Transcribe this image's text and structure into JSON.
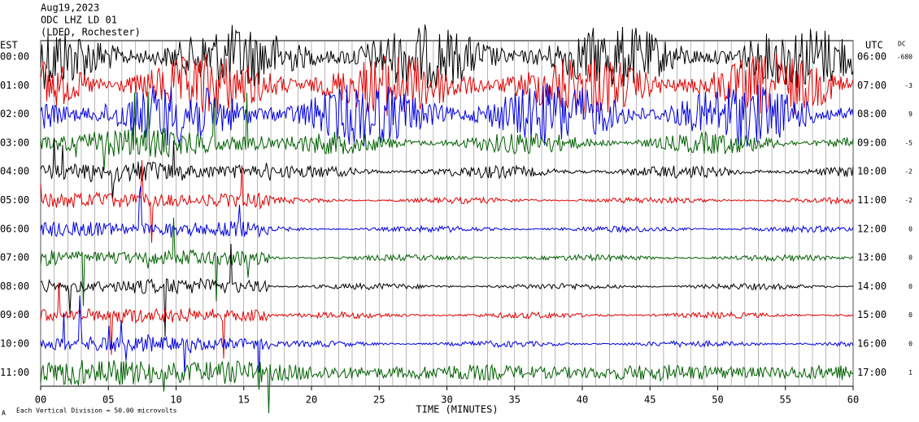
{
  "chart_data": {
    "type": "helicorder",
    "header": [
      "Aug19,2023",
      "ODC LHZ LD 01",
      "(LDEO, Rochester)"
    ],
    "left_zone": "EST",
    "right_zone": "UTC",
    "dc_label": "DC",
    "rows_left": [
      "00:00",
      "01:00",
      "02:00",
      "03:00",
      "04:00",
      "05:00",
      "06:00",
      "07:00",
      "08:00",
      "09:00",
      "10:00",
      "11:00"
    ],
    "rows_right": [
      "06:00",
      "07:00",
      "08:00",
      "09:00",
      "10:00",
      "11:00",
      "12:00",
      "13:00",
      "14:00",
      "15:00",
      "16:00",
      "17:00"
    ],
    "dc_values": [
      -680,
      -3,
      9,
      -5,
      -2,
      -2,
      0,
      0,
      0,
      0,
      0,
      1
    ],
    "xlabel": "TIME (MINUTES)",
    "xlim": [
      0,
      60
    ],
    "xticks": [
      {
        "value": 0,
        "label": "00"
      },
      {
        "value": 5,
        "label": "05"
      },
      10,
      15,
      20,
      25,
      30,
      35,
      40,
      45,
      50,
      55,
      60
    ],
    "trace_colors": [
      "#000000",
      "#e00000",
      "#0000e0",
      "#006000"
    ],
    "footer_corner": "A",
    "footer": "Each Vertical Division = 50.00 microvolts"
  }
}
